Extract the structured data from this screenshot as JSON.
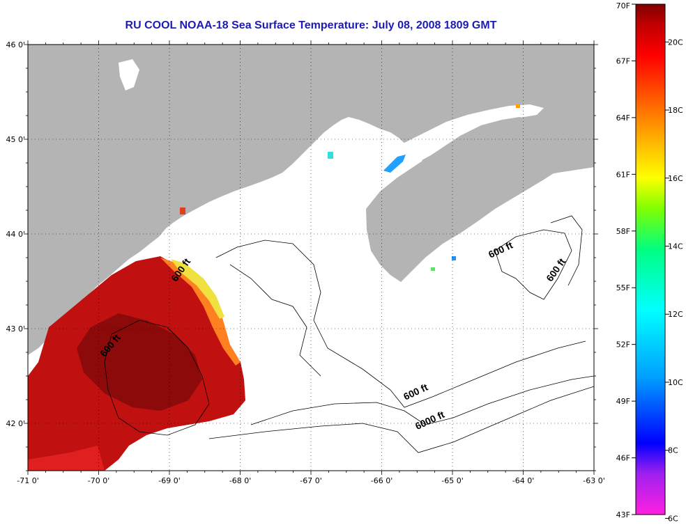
{
  "title": "RU COOL  NOAA-18  Sea Surface Temperature:  July 08, 2008 1809 GMT",
  "map": {
    "lon_range": [
      -71,
      -63
    ],
    "lat_range": [
      41.5,
      46
    ],
    "x_ticks": [
      "-71 0'",
      "-70 0'",
      "-69 0'",
      "-68 0'",
      "-67 0'",
      "-66 0'",
      "-65 0'",
      "-64 0'",
      "-63 0'"
    ],
    "y_ticks": [
      "46 0'",
      "45 0'",
      "44 0'",
      "43 0'",
      "42 0'"
    ],
    "land_color": "#b4b4b4",
    "contour_labels": [
      {
        "text": "600 ft",
        "lon": -68.8,
        "lat": 43.6
      },
      {
        "text": "600 ft",
        "lon": -69.8,
        "lat": 42.8
      },
      {
        "text": "600 ft",
        "lon": -65.5,
        "lat": 42.3
      },
      {
        "text": "6000 ft",
        "lon": -65.3,
        "lat": 42.0
      },
      {
        "text": "600 ft",
        "lon": -64.3,
        "lat": 43.8
      },
      {
        "text": "600 ft",
        "lon": -63.5,
        "lat": 43.6
      }
    ]
  },
  "colorbar": {
    "left_labels": [
      "70F",
      "67F",
      "64F",
      "61F",
      "58F",
      "55F",
      "52F",
      "49F",
      "46F",
      "43F"
    ],
    "right_labels": [
      "20C",
      "18C",
      "16C",
      "14C",
      "12C",
      "10C",
      "8C",
      "6C"
    ],
    "colors": [
      "#ff20e0",
      "#a020f0",
      "#0000ff",
      "#00a0ff",
      "#00ffff",
      "#00ff80",
      "#80ff00",
      "#ffff00",
      "#ffa000",
      "#ff4000",
      "#ff0000",
      "#c00000",
      "#800000"
    ]
  }
}
